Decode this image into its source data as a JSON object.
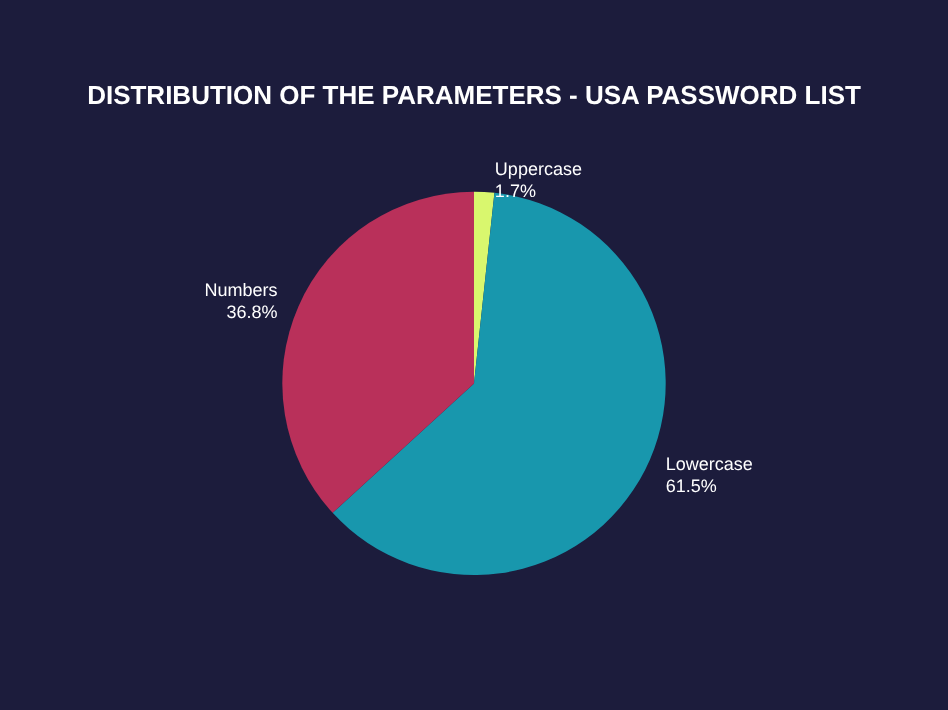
{
  "chart_data": {
    "type": "pie",
    "title": "DISTRIBUTION OF THE PARAMETERS - USA PASSWORD LIST",
    "categories": [
      "Uppercase",
      "Lowercase",
      "Numbers"
    ],
    "values": [
      1.7,
      61.5,
      36.8
    ],
    "value_labels": [
      "1.7%",
      "61.5%",
      "36.8%"
    ],
    "colors": [
      "#d9f76e",
      "#1897ad",
      "#b9305a"
    ],
    "legend": false
  }
}
